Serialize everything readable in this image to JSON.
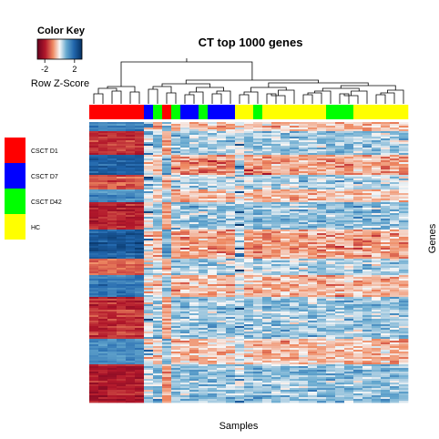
{
  "chart_data": {
    "type": "heatmap",
    "title": "CT top 1000 genes",
    "xlabel": "Samples",
    "ylabel": "Genes",
    "n_samples": 35,
    "n_genes": 1000,
    "color_key": {
      "title": "Color Key",
      "label": "Row Z-Score",
      "ticks": [
        "-2",
        "2"
      ],
      "tick_values": [
        -2,
        2
      ],
      "range": [
        -3,
        3
      ],
      "colors": {
        "low": "#b2182b",
        "mid": "#f7f7f7",
        "high": "#2166ac"
      }
    },
    "legend": {
      "placement": "left",
      "items": [
        {
          "label": "CSCT D1",
          "color": "#ff0000"
        },
        {
          "label": "CSCT D7",
          "color": "#0000ff"
        },
        {
          "label": "CSCT D42",
          "color": "#00ff00"
        },
        {
          "label": "HC",
          "color": "#ffff00"
        }
      ]
    },
    "column_groups": [
      "CSCT D1",
      "CSCT D1",
      "CSCT D1",
      "CSCT D1",
      "CSCT D1",
      "CSCT D1",
      "CSCT D7",
      "CSCT D42",
      "CSCT D1",
      "CSCT D42",
      "CSCT D7",
      "CSCT D7",
      "CSCT D42",
      "CSCT D7",
      "CSCT D7",
      "CSCT D7",
      "HC",
      "HC",
      "CSCT D42",
      "HC",
      "HC",
      "HC",
      "HC",
      "HC",
      "HC",
      "HC",
      "CSCT D42",
      "CSCT D42",
      "CSCT D42",
      "HC",
      "HC",
      "HC",
      "HC",
      "HC",
      "HC"
    ],
    "gene_blocks": [
      {
        "genes": 30,
        "d1_z": 1.4
      },
      {
        "genes": 85,
        "d1_z": -1.5
      },
      {
        "genes": 70,
        "d1_z": 1.8
      },
      {
        "genes": 55,
        "d1_z": -1.2
      },
      {
        "genes": 45,
        "d1_z": 1.3
      },
      {
        "genes": 95,
        "d1_z": -1.7
      },
      {
        "genes": 105,
        "d1_z": 1.9
      },
      {
        "genes": 60,
        "d1_z": -1.1
      },
      {
        "genes": 75,
        "d1_z": 1.5
      },
      {
        "genes": 150,
        "d1_z": -1.6
      },
      {
        "genes": 90,
        "d1_z": 1.2
      },
      {
        "genes": 140,
        "d1_z": -1.8
      }
    ]
  }
}
